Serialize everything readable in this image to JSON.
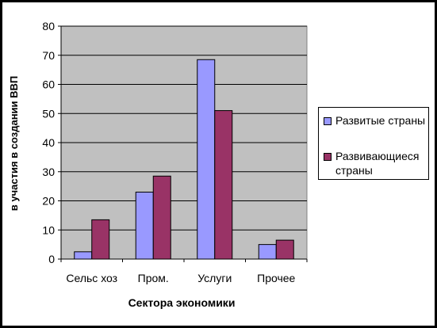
{
  "chart_data": {
    "type": "bar",
    "categories": [
      "Сельс хоз",
      "Пром.",
      "Услуги",
      "Прочее"
    ],
    "series": [
      {
        "name": "Развитые страны",
        "values": [
          2.5,
          23,
          68.5,
          5
        ],
        "color": "#9999ff"
      },
      {
        "name": "Развивающиеся страны",
        "values": [
          13.5,
          28.5,
          51,
          6.5
        ],
        "color": "#993366"
      }
    ],
    "title": "",
    "xlabel": "Сектора экономики",
    "ylabel": "в участия в создании ВВП",
    "ylim": [
      0,
      80
    ],
    "yticks": [
      0,
      10,
      20,
      30,
      40,
      50,
      60,
      70,
      80
    ],
    "grid": true,
    "plot_background": "#c0c0c0",
    "legend_position": "right"
  }
}
